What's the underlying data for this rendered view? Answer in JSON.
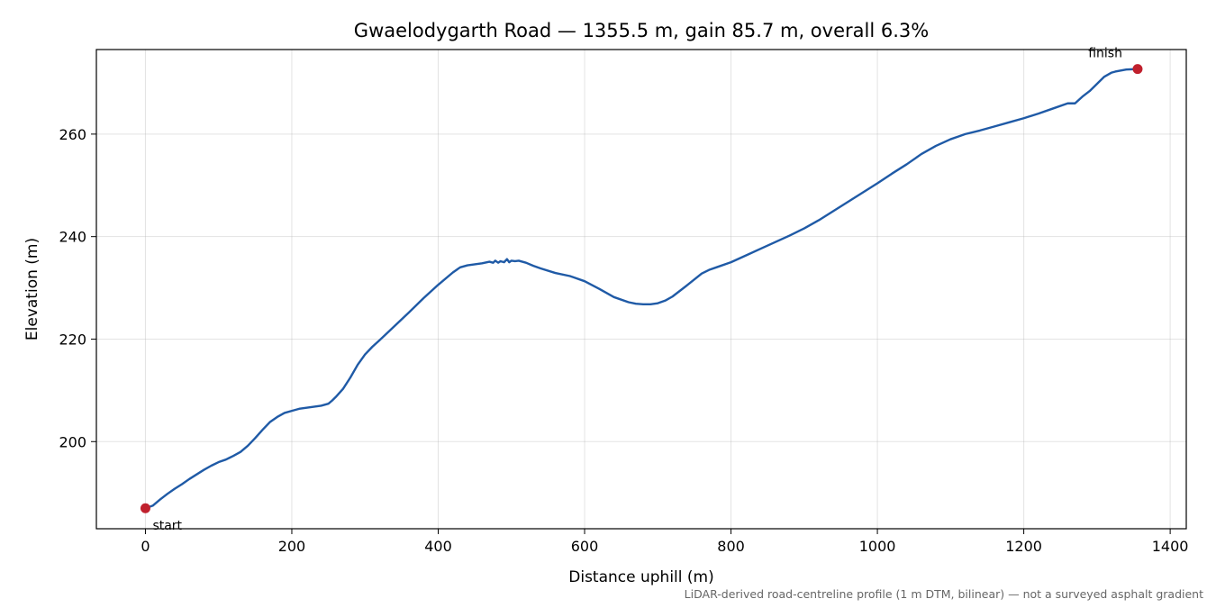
{
  "chart_data": {
    "type": "line",
    "title": "Gwaelodygarth Road — 1355.5 m, gain 85.7 m, overall 6.3%",
    "xlabel": "Distance uphill (m)",
    "ylabel": "Elevation (m)",
    "xlim": [
      -67,
      1422
    ],
    "ylim": [
      183,
      276.5
    ],
    "xticks": [
      0,
      200,
      400,
      600,
      800,
      1000,
      1200,
      1400
    ],
    "yticks": [
      200,
      220,
      240,
      260
    ],
    "grid": true,
    "colors": {
      "line": "#1f5aa6",
      "marker": "#c0202d"
    },
    "series": [
      {
        "x": [
          0,
          10,
          20,
          30,
          40,
          50,
          60,
          70,
          80,
          90,
          100,
          110,
          120,
          130,
          140,
          150,
          160,
          170,
          180,
          190,
          200,
          210,
          220,
          230,
          240,
          250,
          255,
          260,
          270,
          280,
          290,
          300,
          310,
          320,
          340,
          360,
          380,
          400,
          420,
          430,
          440,
          460,
          470,
          475,
          478,
          482,
          485,
          490,
          494,
          497,
          500,
          505,
          510,
          520,
          530,
          540,
          560,
          580,
          600,
          620,
          640,
          660,
          670,
          680,
          690,
          700,
          710,
          720,
          740,
          760,
          770,
          780,
          800,
          820,
          840,
          860,
          880,
          900,
          920,
          940,
          960,
          980,
          1000,
          1020,
          1040,
          1060,
          1080,
          1100,
          1110,
          1120,
          1140,
          1160,
          1180,
          1200,
          1220,
          1240,
          1260,
          1270,
          1280,
          1290,
          1300,
          1310,
          1320,
          1325,
          1340,
          1355.5
        ],
        "y": [
          187.0,
          187.5,
          188.7,
          189.8,
          190.8,
          191.7,
          192.7,
          193.6,
          194.5,
          195.3,
          196.0,
          196.5,
          197.2,
          198.0,
          199.2,
          200.7,
          202.3,
          203.8,
          204.8,
          205.6,
          206.0,
          206.4,
          206.6,
          206.8,
          207.0,
          207.4,
          208.0,
          208.7,
          210.3,
          212.5,
          215.0,
          217.0,
          218.5,
          219.8,
          222.5,
          225.2,
          228.0,
          230.6,
          233.0,
          234.0,
          234.4,
          234.8,
          235.1,
          234.9,
          235.3,
          234.9,
          235.2,
          235.0,
          235.6,
          235.0,
          235.3,
          235.2,
          235.3,
          234.9,
          234.3,
          233.8,
          232.9,
          232.3,
          231.3,
          229.8,
          228.2,
          227.2,
          226.9,
          226.8,
          226.8,
          227.0,
          227.5,
          228.3,
          230.5,
          232.8,
          233.5,
          234.0,
          235.0,
          236.3,
          237.6,
          238.9,
          240.2,
          241.6,
          243.2,
          245.0,
          246.8,
          248.6,
          250.4,
          252.3,
          254.1,
          256.1,
          257.7,
          259.0,
          259.5,
          260.0,
          260.7,
          261.5,
          262.3,
          263.1,
          264.0,
          265.0,
          266.0,
          266.0,
          267.3,
          268.4,
          269.8,
          271.2,
          272.0,
          272.2,
          272.6,
          272.7
        ]
      }
    ],
    "annotations": [
      {
        "text": "start",
        "x": 0,
        "y": 187.0
      },
      {
        "text": "finish",
        "x": 1355.5,
        "y": 272.7
      }
    ],
    "footnote": "LiDAR-derived road-centreline profile (1 m DTM, bilinear) — not a surveyed asphalt gradient"
  }
}
